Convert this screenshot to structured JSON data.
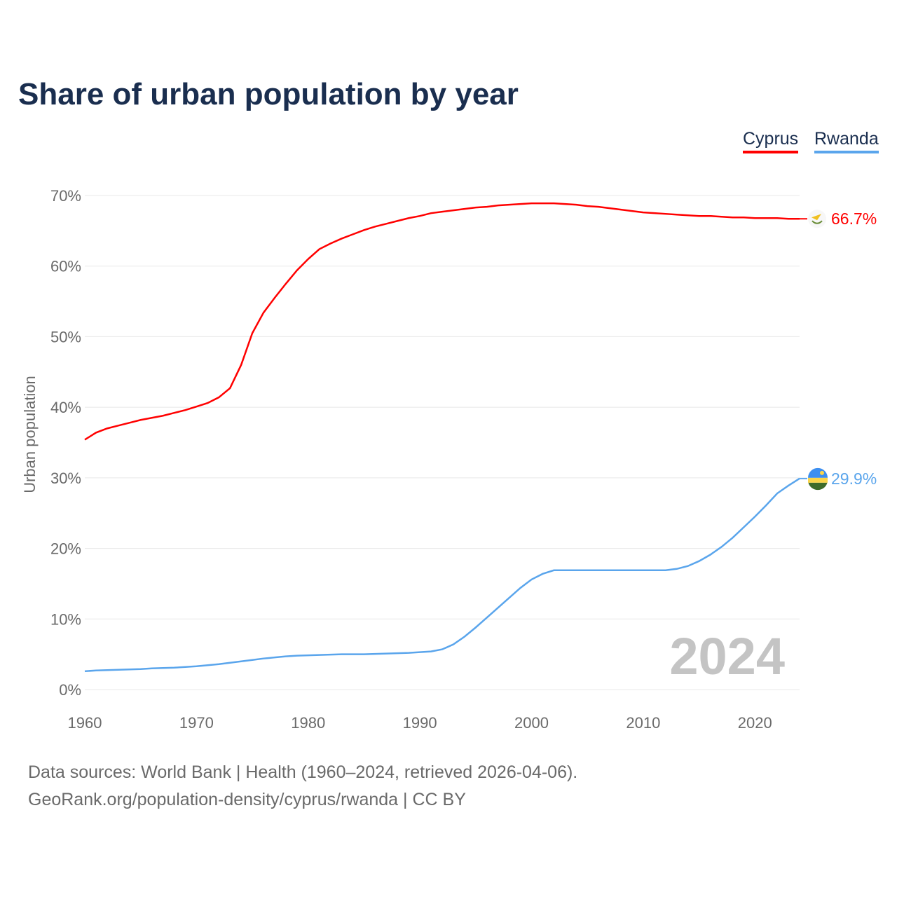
{
  "chart_data": {
    "type": "line",
    "title": "Share of urban population by year",
    "ylabel": "Urban population",
    "xlabel": "",
    "xlim": [
      1960,
      2024
    ],
    "ylim": [
      0,
      70
    ],
    "x_ticks": [
      "1960",
      "1970",
      "1980",
      "1990",
      "2000",
      "2010",
      "2020"
    ],
    "y_ticks": [
      "0%",
      "10%",
      "20%",
      "30%",
      "40%",
      "50%",
      "60%",
      "70%"
    ],
    "grid": true,
    "legend_placement": "top-right",
    "watermark_year": "2024",
    "series": [
      {
        "name": "Cyprus",
        "color": "#ff0000",
        "end_label": "66.7%",
        "values": [
          35.4,
          36.4,
          37.0,
          37.4,
          37.8,
          38.2,
          38.5,
          38.8,
          39.2,
          39.6,
          40.1,
          40.6,
          41.4,
          42.7,
          46.0,
          50.5,
          53.4,
          55.5,
          57.5,
          59.4,
          61.0,
          62.4,
          63.2,
          63.9,
          64.5,
          65.1,
          65.6,
          66.0,
          66.4,
          66.8,
          67.1,
          67.5,
          67.7,
          67.9,
          68.1,
          68.3,
          68.4,
          68.6,
          68.7,
          68.8,
          68.9,
          68.9,
          68.9,
          68.8,
          68.7,
          68.5,
          68.4,
          68.2,
          68.0,
          67.8,
          67.6,
          67.5,
          67.4,
          67.3,
          67.2,
          67.1,
          67.1,
          67.0,
          66.9,
          66.9,
          66.8,
          66.8,
          66.8,
          66.7,
          66.7
        ]
      },
      {
        "name": "Rwanda",
        "color": "#5aa5ec",
        "end_label": "29.9%",
        "values": [
          2.6,
          2.7,
          2.75,
          2.8,
          2.85,
          2.9,
          3.0,
          3.05,
          3.1,
          3.2,
          3.3,
          3.45,
          3.6,
          3.8,
          4.0,
          4.2,
          4.4,
          4.55,
          4.7,
          4.8,
          4.85,
          4.9,
          4.95,
          5.0,
          5.0,
          5.0,
          5.05,
          5.1,
          5.15,
          5.2,
          5.3,
          5.4,
          5.7,
          6.4,
          7.5,
          8.8,
          10.2,
          11.6,
          13.0,
          14.4,
          15.6,
          16.4,
          16.9,
          16.9,
          16.9,
          16.9,
          16.9,
          16.9,
          16.9,
          16.9,
          16.9,
          16.9,
          16.9,
          17.1,
          17.5,
          18.2,
          19.1,
          20.2,
          21.5,
          23.0,
          24.5,
          26.1,
          27.8,
          28.9,
          29.9
        ]
      }
    ]
  },
  "footer": {
    "line1": "Data sources: World Bank | Health (1960–2024, retrieved 2026-04-06).",
    "line2": "GeoRank.org/population-density/cyprus/rwanda | CC BY"
  }
}
